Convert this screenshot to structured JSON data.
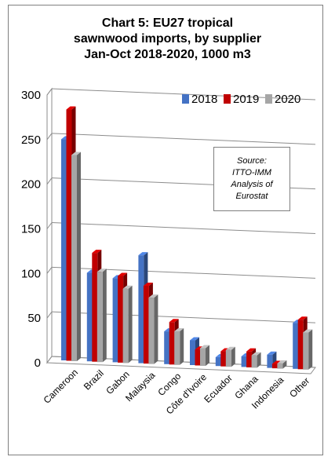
{
  "chart_data": {
    "type": "bar",
    "title_lines": [
      "Chart 5: EU27 tropical",
      "sawnwood imports, by supplier",
      "Jan-Oct 2018-2020, 1000 m3"
    ],
    "categories": [
      "Cameroon",
      "Brazil",
      "Gabon",
      "Malaysia",
      "Congo",
      "Côte d'Ivoire",
      "Ecuador",
      "Ghana",
      "Indonesia",
      "Other"
    ],
    "series": [
      {
        "name": "2018",
        "color": "#4472c4",
        "values": [
          250,
          100,
          95,
          122,
          37,
          28,
          10,
          12,
          15,
          52
        ]
      },
      {
        "name": "2019",
        "color": "#c00000",
        "values": [
          284,
          123,
          98,
          88,
          48,
          18,
          17,
          18,
          5,
          56
        ]
      },
      {
        "name": "2020",
        "color": "#a6a6a6",
        "values": [
          233,
          102,
          84,
          75,
          38,
          20,
          19,
          14,
          6,
          42
        ]
      }
    ],
    "ylim": [
      0,
      300
    ],
    "yticks": [
      0,
      50,
      100,
      150,
      200,
      250,
      300
    ],
    "grid": true,
    "legend_position": "top-right",
    "annotation_lines": [
      "Source:",
      "ITTO-IMM",
      "Analysis of",
      "Eurostat"
    ]
  }
}
